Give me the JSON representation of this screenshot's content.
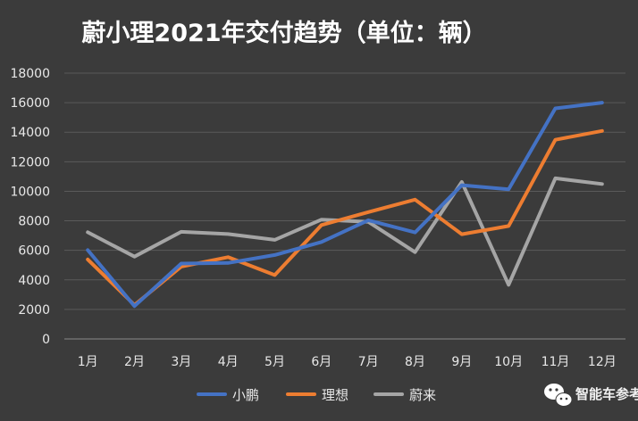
{
  "chart_data": {
    "type": "line",
    "title": "蔚小理2021年交付趋势（单位：辆）",
    "categories": [
      "1月",
      "2月",
      "3月",
      "4月",
      "5月",
      "6月",
      "7月",
      "8月",
      "9月",
      "10月",
      "11月",
      "12月"
    ],
    "ylim": [
      0,
      18000
    ],
    "yticks": [
      0,
      2000,
      4000,
      6000,
      8000,
      10000,
      12000,
      14000,
      16000,
      18000
    ],
    "grid": true,
    "legend_position": "bottom",
    "series": [
      {
        "name": "小鹏",
        "color": "#4472c4",
        "values": [
          6015,
          2223,
          5102,
          5147,
          5686,
          6565,
          8040,
          7214,
          10412,
          10138,
          15613,
          16000
        ]
      },
      {
        "name": "理想",
        "color": "#ed7d31",
        "values": [
          5379,
          2300,
          4900,
          5539,
          4323,
          7713,
          8589,
          9433,
          7094,
          7649,
          13485,
          14087
        ]
      },
      {
        "name": "蔚来",
        "color": "#a5a5a5",
        "values": [
          7225,
          5578,
          7257,
          7102,
          6711,
          8083,
          7931,
          5880,
          10628,
          3667,
          10878,
          10489
        ]
      }
    ]
  },
  "watermark": {
    "text": "智能车参考",
    "icon": "wechat-icon"
  }
}
